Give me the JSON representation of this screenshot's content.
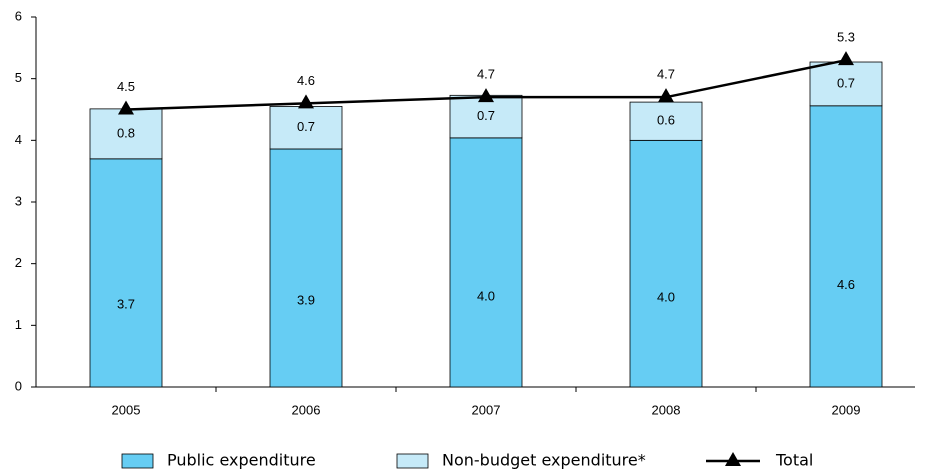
{
  "chart_data": {
    "type": "bar",
    "stacked": true,
    "categories": [
      "2005",
      "2006",
      "2007",
      "2008",
      "2009"
    ],
    "series": [
      {
        "name": "Public expenditure",
        "color": "#66cdf3",
        "values": [
          3.7,
          3.86,
          4.04,
          4.0,
          4.56
        ],
        "value_labels": [
          "3.7",
          "3.9",
          "4.0",
          "4.0",
          "4.6"
        ]
      },
      {
        "name": "Non-budget expenditure*",
        "color": "#c6eaf8",
        "values": [
          0.81,
          0.69,
          0.69,
          0.62,
          0.71
        ],
        "value_labels": [
          "0.8",
          "0.7",
          "0.7",
          "0.6",
          "0.7"
        ]
      },
      {
        "name": "Total",
        "type": "line",
        "color": "#000000",
        "values": [
          4.5,
          4.6,
          4.7,
          4.7,
          5.3
        ]
      }
    ],
    "ylim": [
      0,
      6
    ],
    "yticks": [
      0,
      1,
      2,
      3,
      4,
      5,
      6
    ],
    "grid": false
  }
}
